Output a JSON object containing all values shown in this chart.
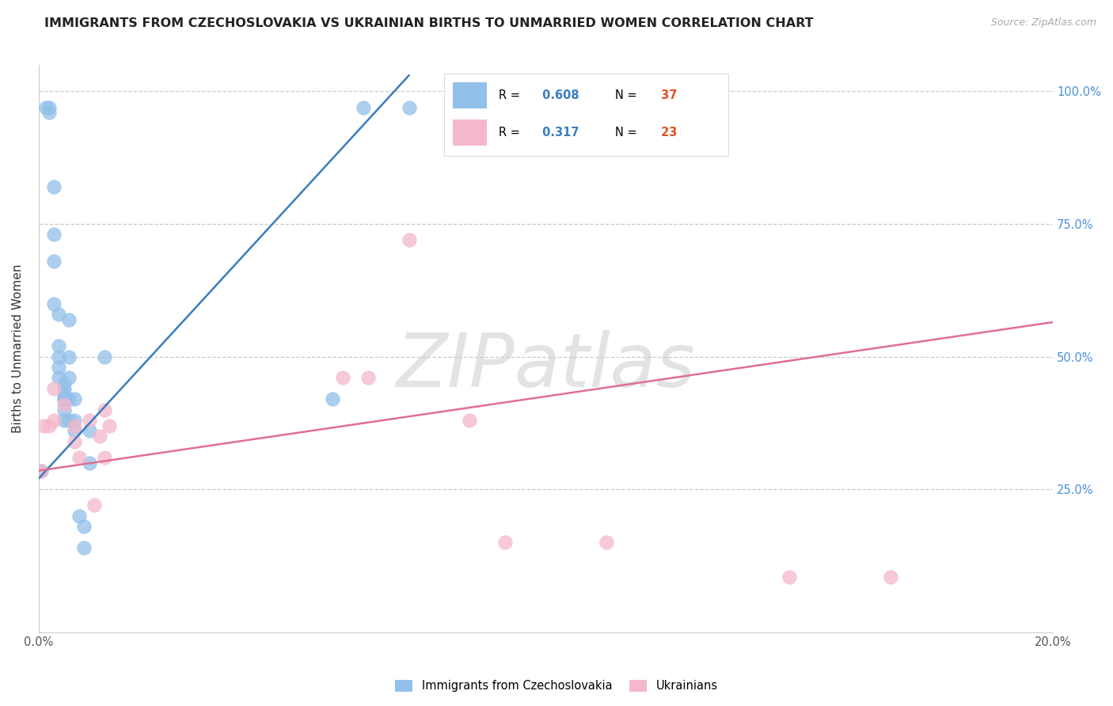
{
  "title": "IMMIGRANTS FROM CZECHOSLOVAKIA VS UKRAINIAN BIRTHS TO UNMARRIED WOMEN CORRELATION CHART",
  "source": "Source: ZipAtlas.com",
  "ylabel": "Births to Unmarried Women",
  "legend_label1": "Immigrants from Czechoslovakia",
  "legend_label2": "Ukrainians",
  "R1": 0.608,
  "N1": 37,
  "R2": 0.317,
  "N2": 23,
  "blue_color": "#92c0ea",
  "pink_color": "#f5b8cb",
  "blue_line_color": "#3a7dbf",
  "pink_line_color": "#e07090",
  "xmin": 0.0,
  "xmax": 0.2,
  "ymin": 0.0,
  "ymax": 1.05,
  "blue_x": [
    0.0005,
    0.0015,
    0.002,
    0.002,
    0.003,
    0.003,
    0.003,
    0.003,
    0.004,
    0.004,
    0.004,
    0.004,
    0.004,
    0.005,
    0.005,
    0.005,
    0.005,
    0.005,
    0.005,
    0.005,
    0.006,
    0.006,
    0.006,
    0.006,
    0.006,
    0.007,
    0.007,
    0.007,
    0.008,
    0.009,
    0.009,
    0.01,
    0.01,
    0.013,
    0.058,
    0.064,
    0.073
  ],
  "blue_y": [
    0.285,
    0.97,
    0.97,
    0.96,
    0.82,
    0.73,
    0.68,
    0.6,
    0.58,
    0.52,
    0.5,
    0.48,
    0.46,
    0.45,
    0.44,
    0.43,
    0.42,
    0.42,
    0.4,
    0.38,
    0.57,
    0.5,
    0.46,
    0.42,
    0.38,
    0.42,
    0.38,
    0.36,
    0.2,
    0.18,
    0.14,
    0.36,
    0.3,
    0.5,
    0.42,
    0.97,
    0.97
  ],
  "pink_x": [
    0.0005,
    0.001,
    0.002,
    0.003,
    0.003,
    0.005,
    0.007,
    0.007,
    0.008,
    0.01,
    0.011,
    0.012,
    0.013,
    0.013,
    0.014,
    0.06,
    0.065,
    0.073,
    0.085,
    0.092,
    0.112,
    0.148,
    0.168
  ],
  "pink_y": [
    0.285,
    0.37,
    0.37,
    0.44,
    0.38,
    0.41,
    0.37,
    0.34,
    0.31,
    0.38,
    0.22,
    0.35,
    0.31,
    0.4,
    0.37,
    0.46,
    0.46,
    0.72,
    0.38,
    0.15,
    0.15,
    0.085,
    0.085
  ],
  "blue_line_x": [
    0.0,
    0.073
  ],
  "blue_line_y": [
    0.27,
    1.03
  ],
  "pink_line_x": [
    0.0,
    0.2
  ],
  "pink_line_y": [
    0.285,
    0.565
  ],
  "watermark_text": "ZIPatlas",
  "background_color": "#ffffff"
}
